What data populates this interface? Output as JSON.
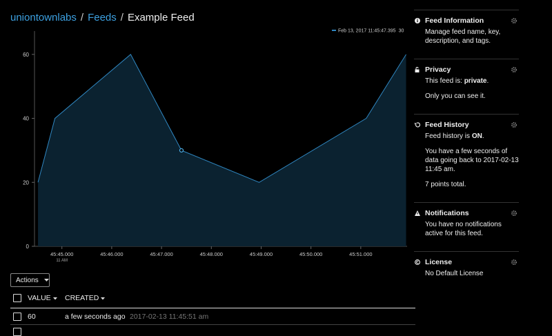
{
  "breadcrumb": {
    "items": [
      "uniontownlabs",
      "Feeds",
      "Example Feed"
    ],
    "separator": "/"
  },
  "chart_data": {
    "type": "area",
    "x": [
      44.52,
      44.86,
      46.38,
      47.4,
      48.96,
      51.11,
      51.91
    ],
    "values": [
      20,
      40,
      60,
      30,
      20,
      40,
      60
    ],
    "color": "#2f86c0",
    "fill": "#0b2230",
    "xlim": [
      44.45,
      51.93
    ],
    "xticks": [
      {
        "value": 45,
        "label": "45:45.000"
      },
      {
        "value": 46,
        "label": "45:46.000"
      },
      {
        "value": 47,
        "label": "45:47.000"
      },
      {
        "value": 48,
        "label": "45:48.000"
      },
      {
        "value": 49,
        "label": "45:49.000"
      },
      {
        "value": 50,
        "label": "45:50.000"
      },
      {
        "value": 51,
        "label": "45:51.000"
      }
    ],
    "x_sublabel": "11 AM",
    "ylim": [
      0,
      67.3
    ],
    "yticks": [
      0,
      20,
      40,
      60
    ],
    "highlight_index": 3,
    "tooltip": {
      "date": "Feb 13, 2017 11:45:47.395",
      "value": 30
    }
  },
  "actions": "Actions",
  "table": {
    "columns": [
      "VALUE",
      "CREATED"
    ],
    "rows": [
      [
        60,
        "a few seconds ago",
        "2017-02-13 11:45:51 am"
      ]
    ]
  },
  "sidebar": [
    {
      "title": "Feed Information",
      "lines": [
        [
          "Manage feed name, key, description, and tags."
        ]
      ]
    },
    {
      "title": "Privacy",
      "lines": [
        [
          "This feed is: ",
          "private",
          "."
        ],
        [
          "Only you can see it."
        ]
      ]
    },
    {
      "title": "Feed History",
      "lines": [
        [
          "Feed history is ",
          "ON",
          "."
        ],
        [
          "You have a few seconds of data going back to 2017-02-13 11:45 am."
        ],
        [
          "7 points total."
        ]
      ]
    },
    {
      "title": "Notifications",
      "lines": [
        [
          "You have no notifications active for this feed."
        ]
      ]
    },
    {
      "title": "License",
      "lines": [
        [
          "No Default License"
        ]
      ]
    }
  ]
}
